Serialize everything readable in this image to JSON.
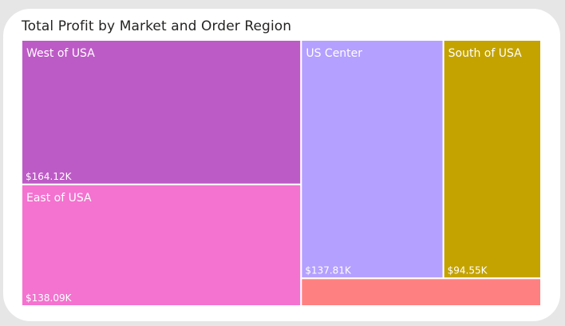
{
  "chart_data": {
    "type": "treemap",
    "title": "Total Profit by Market and Order Region",
    "tiles": [
      {
        "name": "West of USA",
        "value": 164.12,
        "value_label": "$164.12K",
        "color": "#bd5bc6"
      },
      {
        "name": "East of USA",
        "value": 138.09,
        "value_label": "$138.09K",
        "color": "#f472d0"
      },
      {
        "name": "US Center",
        "value": 137.81,
        "value_label": "$137.81K",
        "color": "#b4a0ff"
      },
      {
        "name": "South of USA",
        "value": 94.55,
        "value_label": "$94.55K",
        "color": "#c4a300"
      },
      {
        "name": "",
        "value": 27,
        "value_label": "",
        "color": "#ff8080"
      }
    ]
  }
}
